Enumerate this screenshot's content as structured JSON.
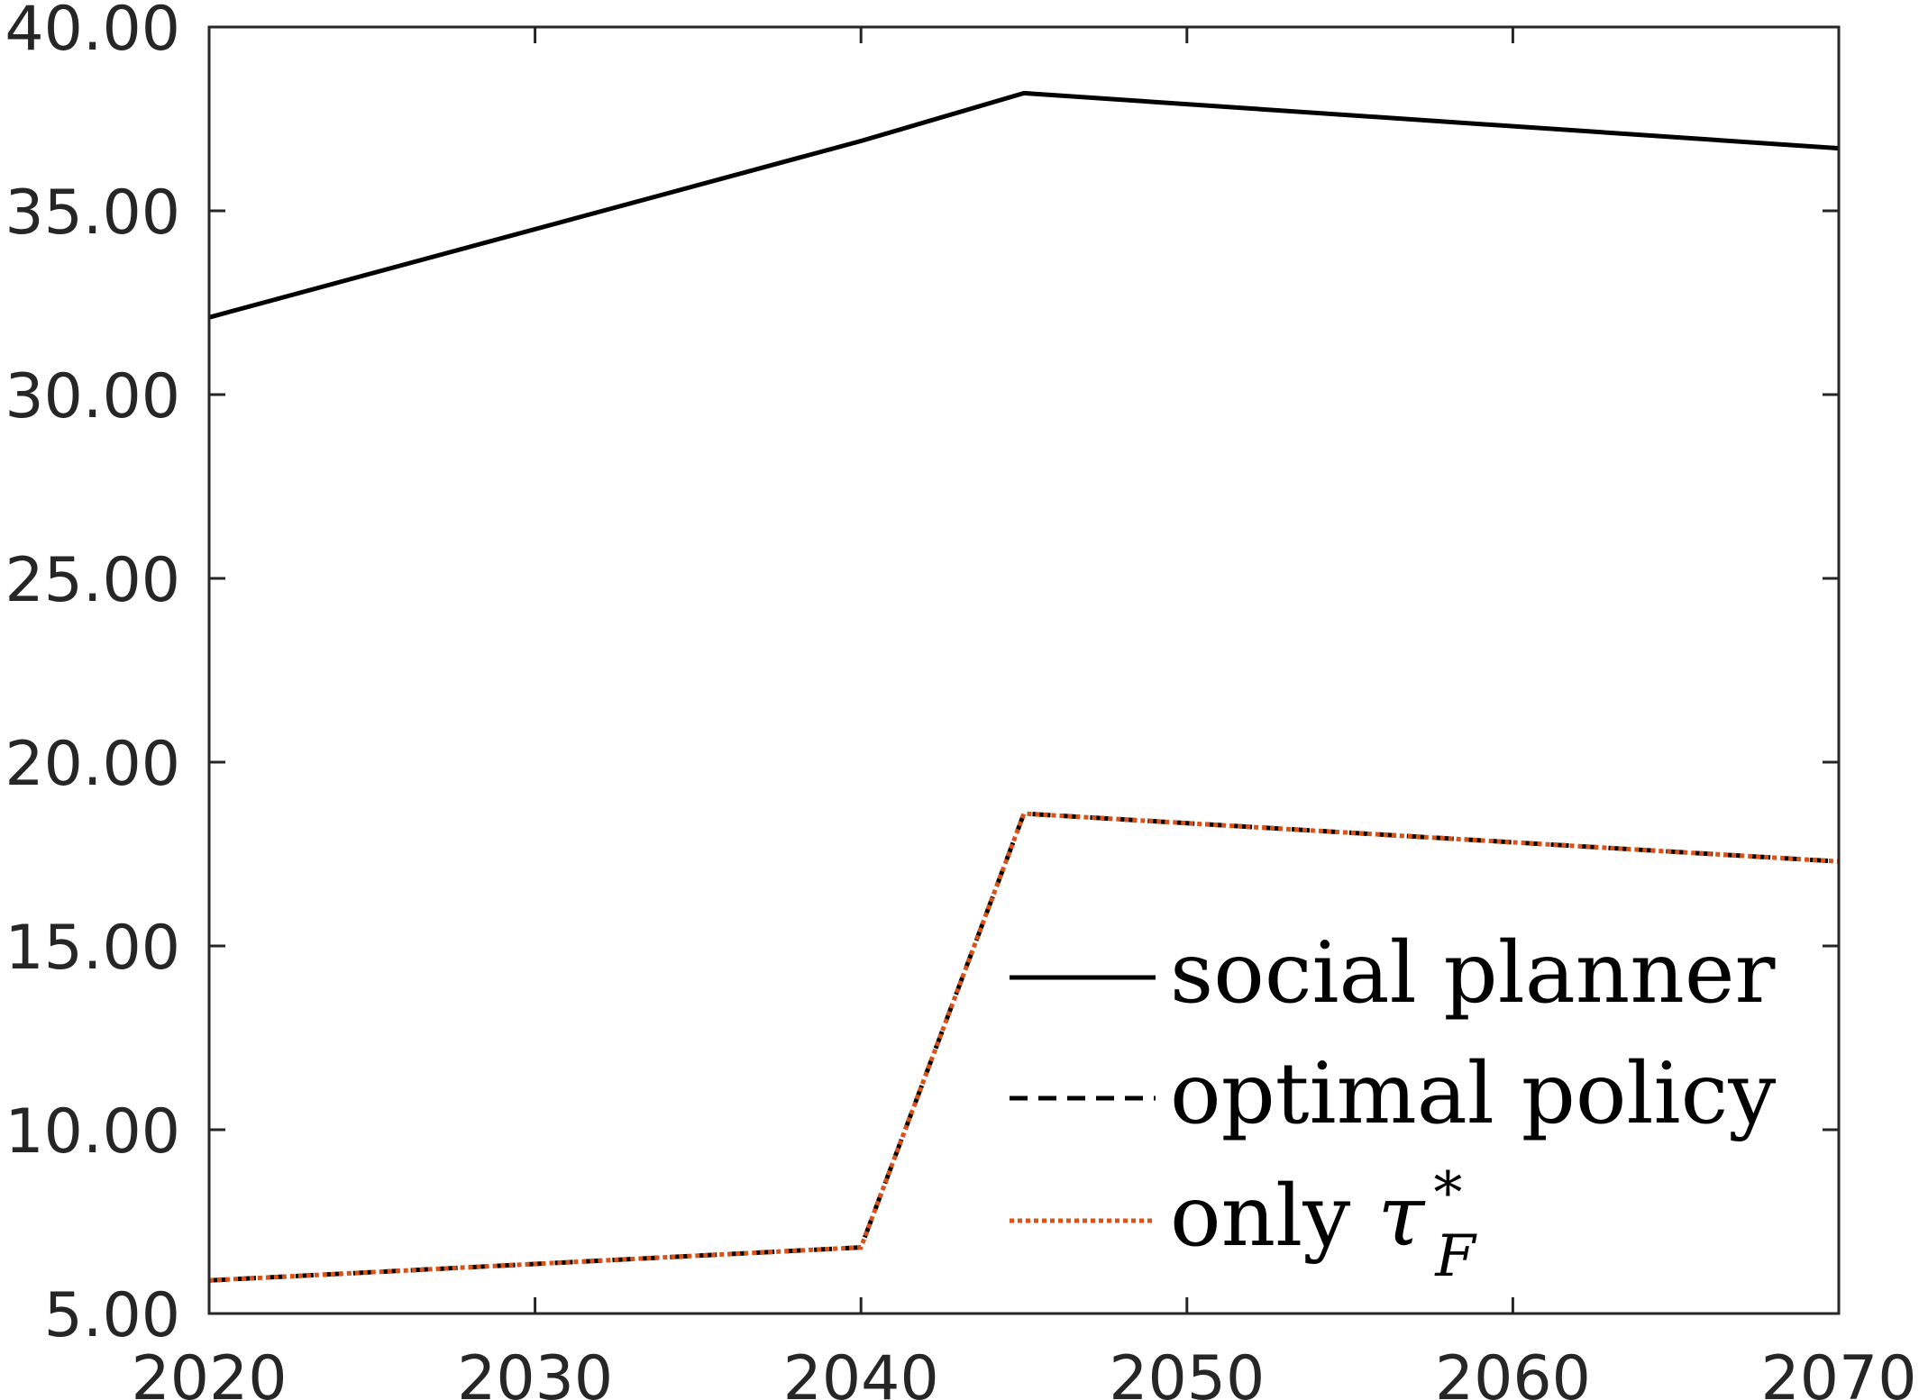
{
  "chart_data": {
    "type": "line",
    "xlim": [
      2020,
      2070
    ],
    "ylim": [
      5,
      40
    ],
    "xticks": [
      2020,
      2030,
      2040,
      2050,
      2060,
      2070
    ],
    "xtick_labels": [
      "2020",
      "2030",
      "2040",
      "2050",
      "2060",
      "2070"
    ],
    "yticks": [
      5,
      10,
      15,
      20,
      25,
      30,
      35,
      40
    ],
    "ytick_labels": [
      "5.00",
      "10.00",
      "15.00",
      "20.00",
      "25.00",
      "30.00",
      "35.00",
      "40.00"
    ],
    "grid": false,
    "legend_position": "bottom-right",
    "series": [
      {
        "name": "social planner",
        "style": "solid",
        "color": "#000000",
        "x": [
          2020,
          2040,
          2045,
          2070
        ],
        "y": [
          32.1,
          36.9,
          38.2,
          36.7
        ]
      },
      {
        "name": "optimal policy",
        "style": "dashed",
        "color": "#000000",
        "x": [
          2020,
          2040,
          2045,
          2070
        ],
        "y": [
          5.9,
          6.8,
          18.6,
          17.3
        ]
      },
      {
        "name": "only τ*F",
        "name_parts": {
          "prefix": "only",
          "symbol": "τ",
          "superscript": "*",
          "subscript": "F"
        },
        "style": "dotted",
        "color": "#D95319",
        "x": [
          2020,
          2040,
          2045,
          2070
        ],
        "y": [
          5.9,
          6.8,
          18.6,
          17.3
        ]
      }
    ]
  }
}
